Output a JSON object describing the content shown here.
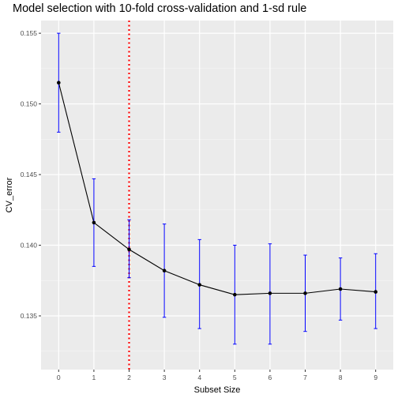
{
  "chart_data": {
    "type": "line",
    "title": "Model selection with 10-fold cross-validation and 1-sd rule",
    "xlabel": "Subset Size",
    "ylabel": "CV_error",
    "x": [
      0,
      1,
      2,
      3,
      4,
      5,
      6,
      7,
      8,
      9
    ],
    "x_ticks": [
      "0",
      "1",
      "2",
      "3",
      "4",
      "5",
      "6",
      "7",
      "8",
      "9"
    ],
    "series": [
      {
        "values": [
          0.1515,
          0.1416,
          0.1397,
          0.1382,
          0.1372,
          0.1365,
          0.1366,
          0.1366,
          0.1369,
          0.1367
        ],
        "error_lower": [
          0.148,
          0.1385,
          0.1377,
          0.1349,
          0.1341,
          0.133,
          0.133,
          0.1339,
          0.1347,
          0.1341
        ],
        "error_upper": [
          0.155,
          0.1447,
          0.1418,
          0.1415,
          0.1404,
          0.14,
          0.1401,
          0.1393,
          0.1391,
          0.1394
        ],
        "line_color": "#000000",
        "error_color": "#0000ff"
      }
    ],
    "y_ticks": [
      "0.135",
      "0.140",
      "0.145",
      "0.150",
      "0.155"
    ],
    "y_tick_values": [
      0.135,
      0.14,
      0.145,
      0.15,
      0.155
    ],
    "xlim": [
      -0.5,
      9.5
    ],
    "ylim": [
      0.1312,
      0.1559
    ],
    "vline": {
      "x": 2,
      "color": "#ff0000",
      "style": "dotted"
    },
    "grid": true,
    "panel_background": "#ebebeb"
  }
}
